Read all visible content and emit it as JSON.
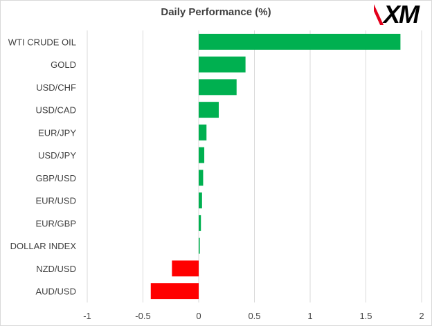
{
  "chart_data": {
    "type": "bar",
    "orientation": "horizontal",
    "title": "Daily Performance (%)",
    "categories": [
      "WTI CRUDE OIL",
      "GOLD",
      "USD/CHF",
      "USD/CAD",
      "EUR/JPY",
      "USD/JPY",
      "GBP/USD",
      "EUR/USD",
      "EUR/GBP",
      "DOLLAR INDEX",
      "NZD/USD",
      "AUD/USD"
    ],
    "values": [
      1.81,
      0.42,
      0.34,
      0.18,
      0.07,
      0.05,
      0.04,
      0.03,
      0.02,
      0.01,
      -0.24,
      -0.43
    ],
    "xlim": [
      -1,
      2
    ],
    "xticks": [
      -1,
      -0.5,
      0,
      0.5,
      1,
      1.5,
      2
    ],
    "xtick_labels": [
      "-1",
      "-0.5",
      "0",
      "0.5",
      "1",
      "1.5",
      "2"
    ],
    "grid": "vertical",
    "colors": {
      "positive": "#00b050",
      "negative": "#ff0000",
      "grid": "#d9d9d9",
      "text": "#404040"
    }
  },
  "logo": {
    "text": "XM"
  }
}
